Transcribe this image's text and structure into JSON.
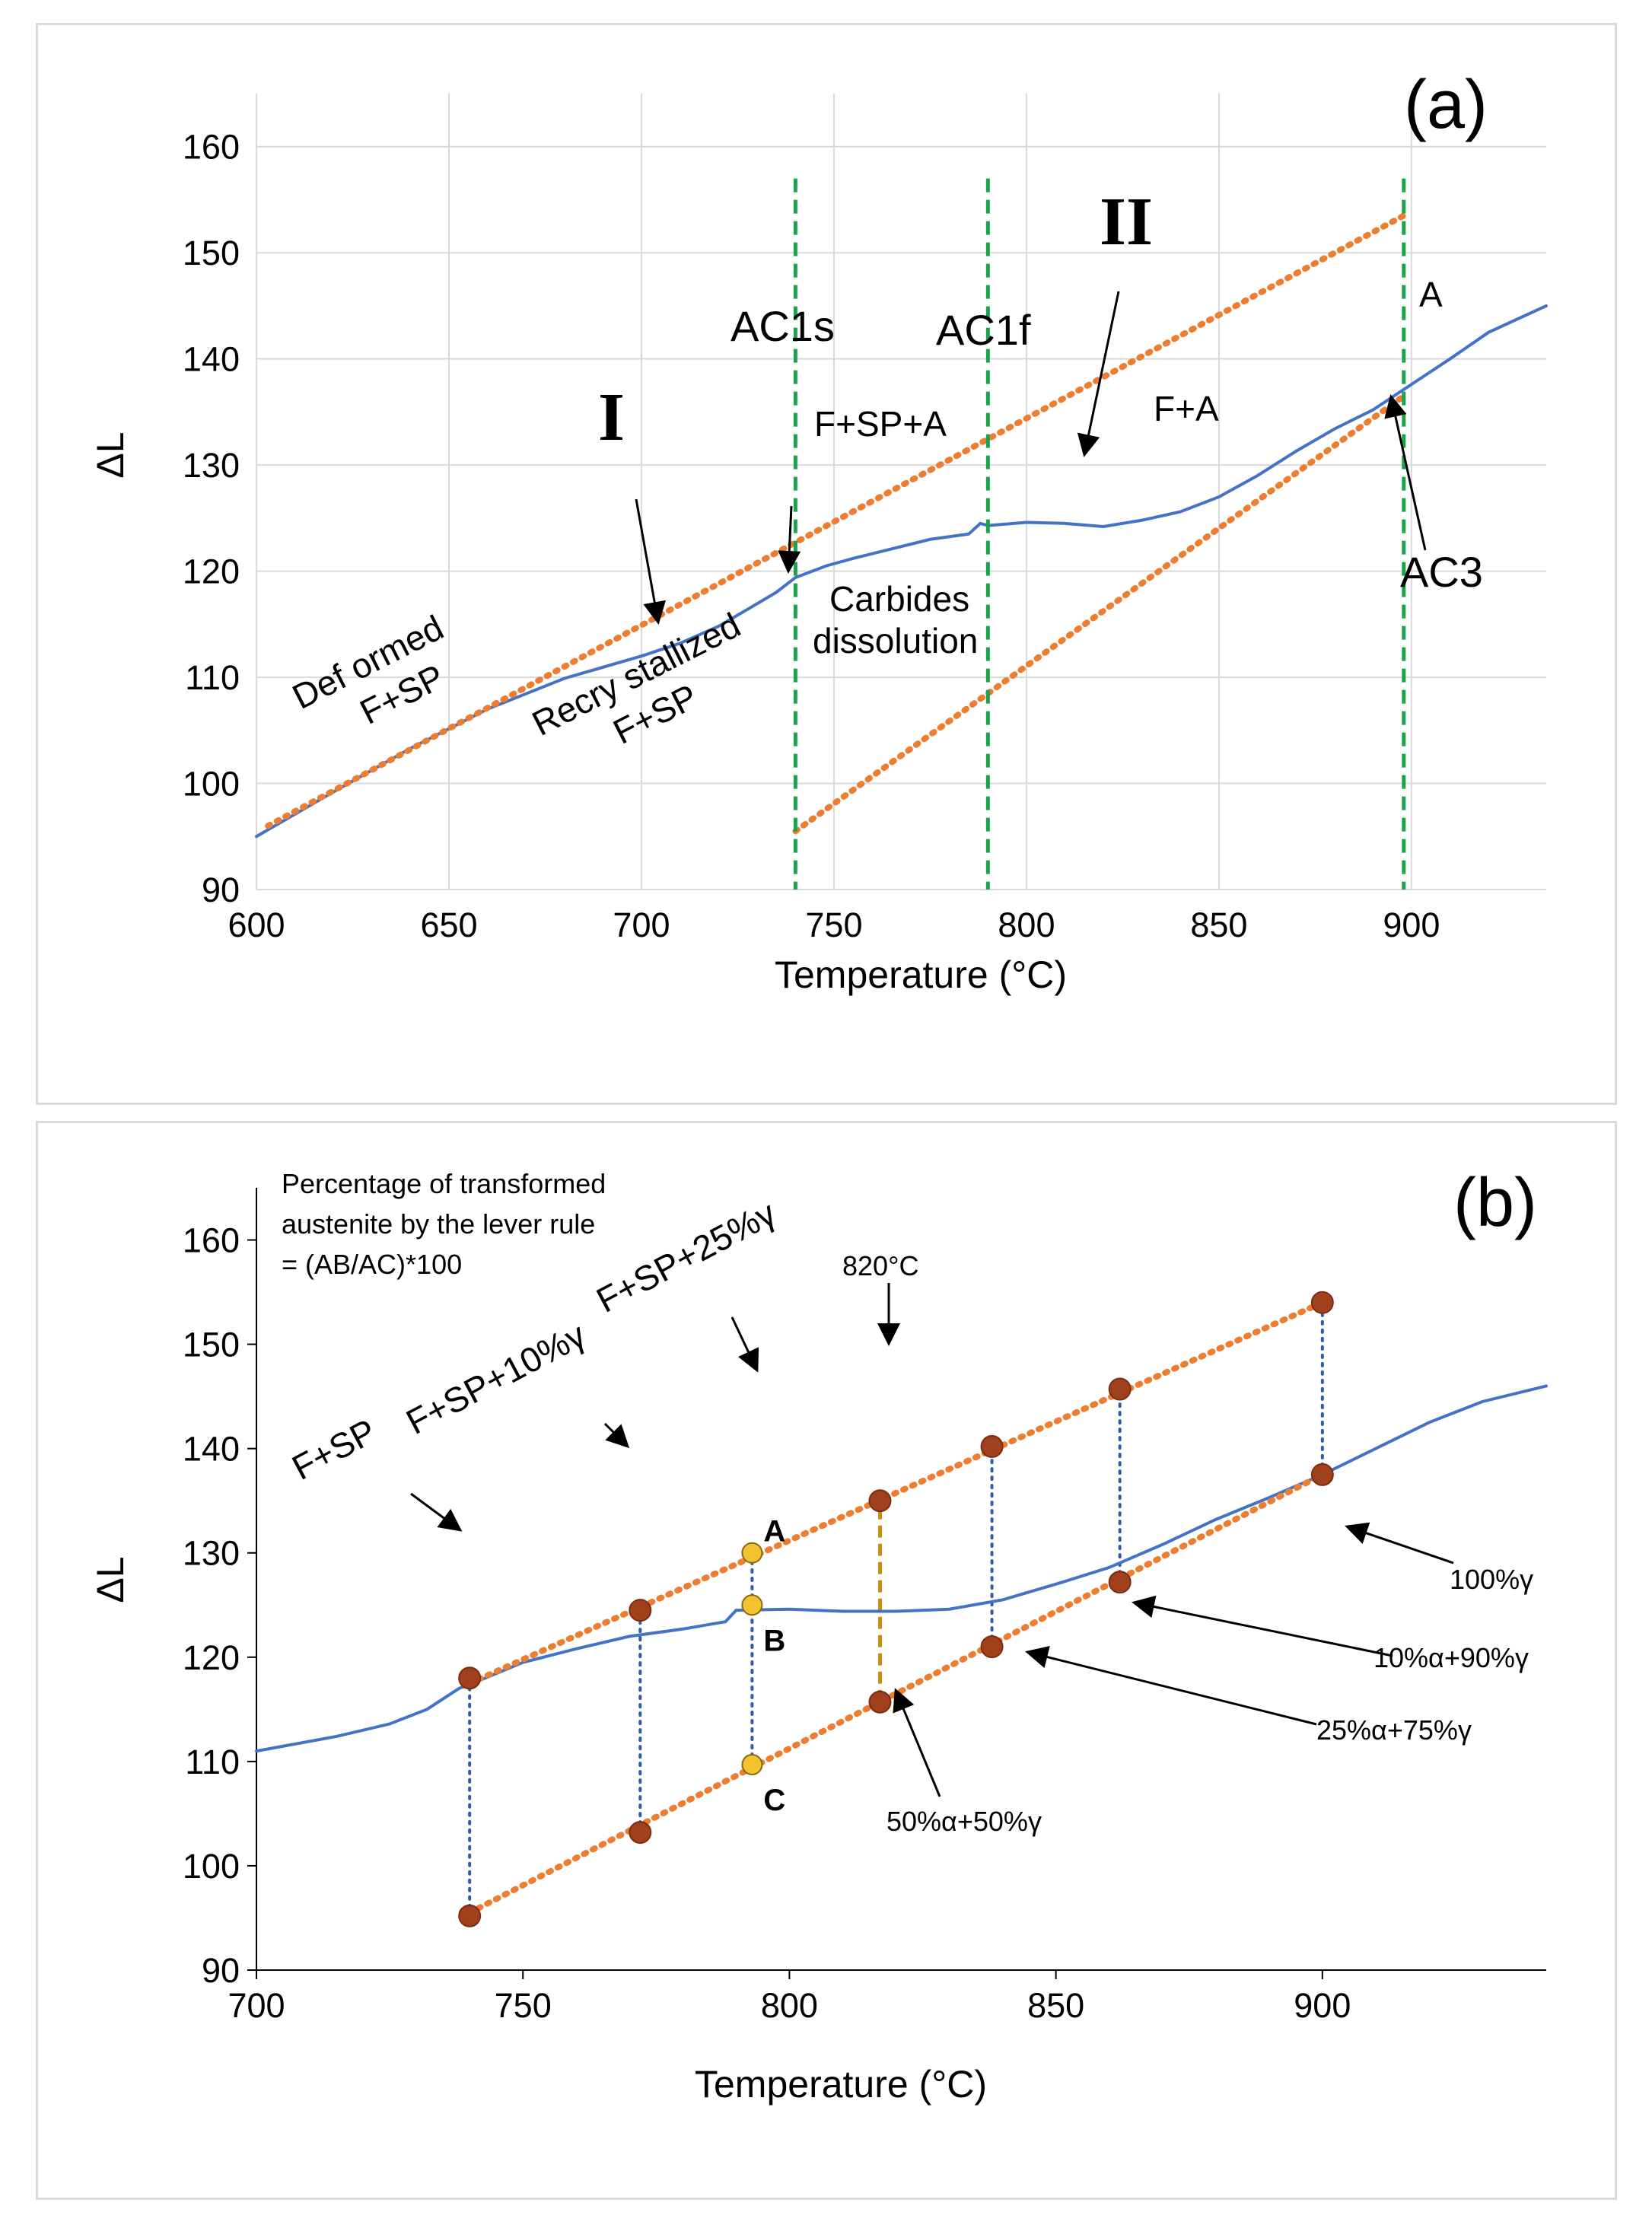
{
  "colors": {
    "measured": "#4472c4",
    "tangent": "#ed7d31",
    "vline": "#1aa34a",
    "grid": "#d9d9d9",
    "dropline": "#2e5ea8",
    "gold": "#c8900f",
    "point_brown": "#a0401c",
    "point_yellow": "#f2c230"
  },
  "icons": [
    "arrow-icon"
  ],
  "chart_data": [
    {
      "type": "line",
      "panel_label": "(a)",
      "xlabel": "Temperature (°C)",
      "ylabel": "ΔL",
      "xlim": [
        600,
        935
      ],
      "ylim": [
        90,
        165
      ],
      "xticks": [
        600,
        650,
        700,
        750,
        800,
        850,
        900
      ],
      "yticks": [
        90,
        100,
        110,
        120,
        130,
        140,
        150,
        160
      ],
      "grid": true,
      "series": [
        {
          "role": "measured",
          "x": [
            600,
            620,
            640,
            660,
            680,
            700,
            710,
            720,
            728,
            735,
            740,
            748,
            755,
            765,
            775,
            785,
            788,
            790,
            800,
            810,
            820,
            830,
            840,
            850,
            860,
            870,
            880,
            890,
            900,
            910,
            920,
            935
          ],
          "y": [
            95,
            99.2,
            103.3,
            107,
            109.9,
            112,
            113.2,
            114.8,
            116.5,
            118,
            119.4,
            120.5,
            121.2,
            122.1,
            123,
            123.5,
            124.5,
            124.3,
            124.6,
            124.5,
            124.2,
            124.8,
            125.6,
            127,
            129,
            131.3,
            133.4,
            135.2,
            137.6,
            140,
            142.5,
            145
          ]
        },
        {
          "role": "tangent-upper",
          "x": [
            603,
            898
          ],
          "y": [
            96,
            153.5
          ]
        },
        {
          "role": "tangent-lower",
          "x": [
            740,
            898
          ],
          "y": [
            95.5,
            136.5
          ]
        }
      ],
      "vlines": [
        740,
        790,
        898
      ],
      "annotations": {
        "ac1s": "AC1s",
        "ac1f": "AC1f",
        "ac3": "AC3",
        "roman_1": "I",
        "roman_2": "II",
        "region_deformed": [
          "Def ormed",
          "F+SP"
        ],
        "region_recrystallized": [
          "Recry stallized",
          "F+SP"
        ],
        "region_fspa": "F+SP+A",
        "region_carbides": [
          "Carbides",
          "dissolution"
        ],
        "region_fa": "F+A",
        "region_a": "A"
      }
    },
    {
      "type": "line",
      "panel_label": "(b)",
      "xlabel": "Temperature (°C)",
      "ylabel": "ΔL",
      "xlim": [
        700,
        942
      ],
      "ylim": [
        90,
        165
      ],
      "xticks": [
        700,
        750,
        800,
        850,
        900
      ],
      "yticks": [
        90,
        100,
        110,
        120,
        130,
        140,
        150,
        160
      ],
      "grid": false,
      "series": [
        {
          "role": "measured",
          "x": [
            700,
            715,
            725,
            732,
            738,
            742,
            750,
            760,
            770,
            780,
            788,
            790,
            800,
            810,
            820,
            830,
            840,
            850,
            860,
            870,
            880,
            890,
            900,
            910,
            920,
            930,
            942
          ],
          "y": [
            111,
            112.4,
            113.6,
            115,
            117,
            117.8,
            119.5,
            120.8,
            122,
            122.7,
            123.4,
            124.5,
            124.6,
            124.4,
            124.4,
            124.6,
            125.5,
            127,
            128.6,
            130.8,
            133.2,
            135.3,
            137.5,
            140,
            142.5,
            144.5,
            146
          ]
        },
        {
          "role": "tangent-upper",
          "x": [
            740,
            900
          ],
          "y": [
            117.5,
            154
          ]
        },
        {
          "role": "tangent-lower",
          "x": [
            740,
            900
          ],
          "y": [
            95.5,
            137.5
          ]
        }
      ],
      "points_brown": [
        {
          "x": 740,
          "y": 118
        },
        {
          "x": 772,
          "y": 124.5
        },
        {
          "x": 817,
          "y": 135
        },
        {
          "x": 838,
          "y": 140.2
        },
        {
          "x": 862,
          "y": 145.7
        },
        {
          "x": 900,
          "y": 154
        },
        {
          "x": 740,
          "y": 95.2
        },
        {
          "x": 772,
          "y": 103.2
        },
        {
          "x": 817,
          "y": 115.7
        },
        {
          "x": 838,
          "y": 121
        },
        {
          "x": 862,
          "y": 127.2
        },
        {
          "x": 900,
          "y": 137.5
        }
      ],
      "points_yellow": [
        {
          "x": 793,
          "y": 130,
          "label": "A"
        },
        {
          "x": 793,
          "y": 125,
          "label": "B"
        },
        {
          "x": 793,
          "y": 109.7,
          "label": "C"
        }
      ],
      "droplines": [
        [
          740,
          95.2,
          118
        ],
        [
          772,
          103.2,
          124.5
        ],
        [
          793,
          109.7,
          130
        ],
        [
          838,
          121,
          140.2
        ],
        [
          862,
          127.2,
          145.7
        ],
        [
          900,
          137.5,
          154
        ]
      ],
      "gold_line": [
        817,
        115.7,
        135
      ],
      "annotations": {
        "formula": [
          "Percentage of transformed",
          "austenite by the lever rule",
          "= (AB/AC)*100"
        ],
        "t820": "820°C",
        "fsp": "F+SP",
        "fsp10": "F+SP+10%γ",
        "fsp25": "F+SP+25%γ",
        "g100": "100%γ",
        "a10g90": "10%α+90%γ",
        "a25g75": "25%α+75%γ",
        "a50g50": "50%α+50%γ"
      }
    }
  ]
}
